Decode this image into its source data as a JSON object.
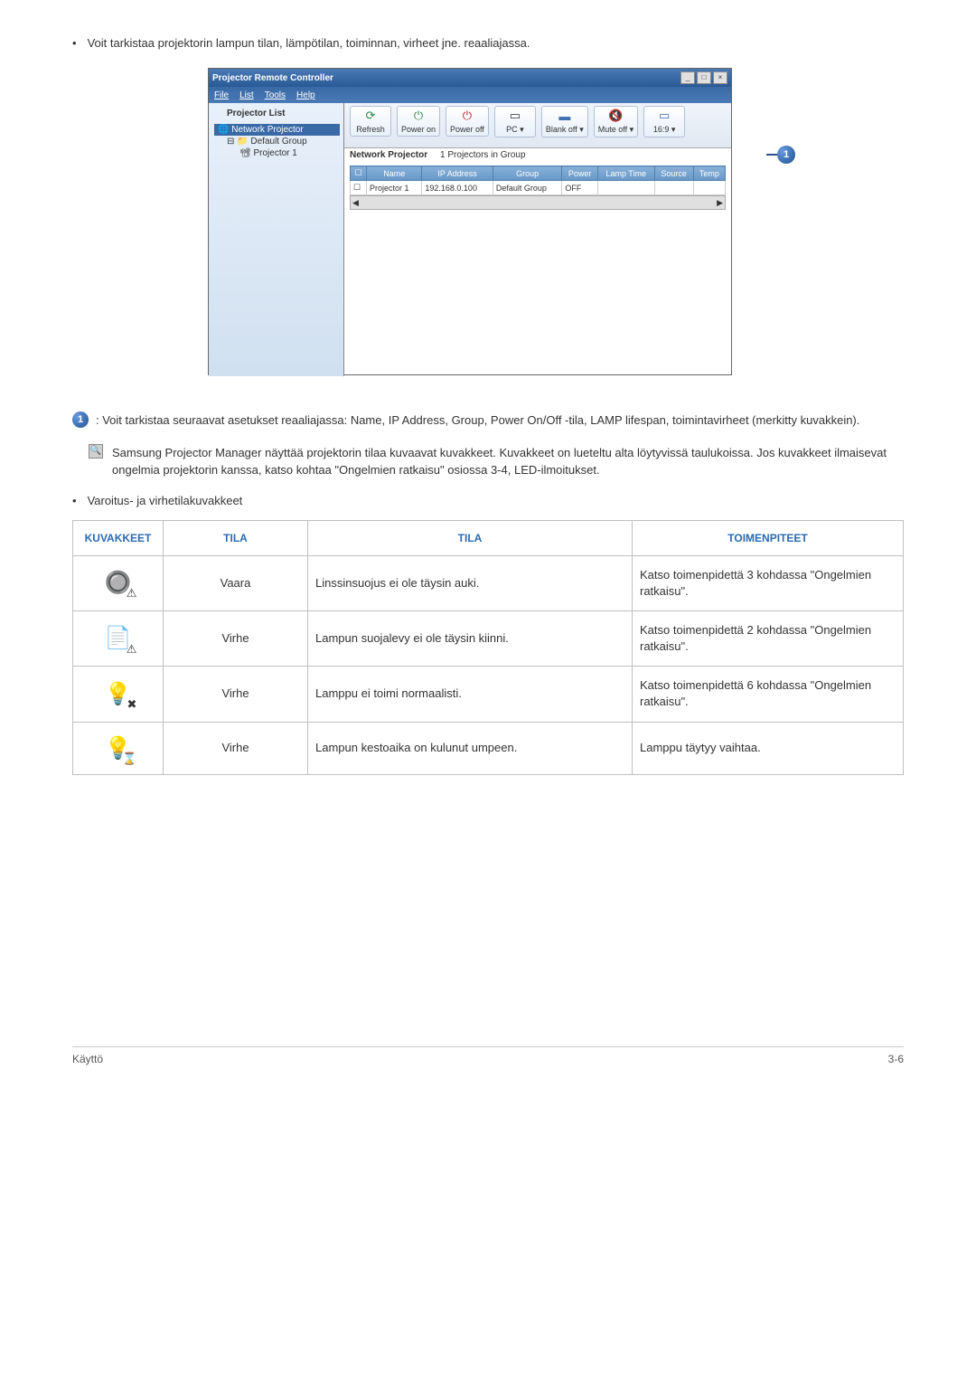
{
  "intro": "Voit tarkistaa projektorin lampun tilan, lämpötilan, toiminnan, virheet jne. reaaliajassa.",
  "app": {
    "title": "Projector Remote Controller",
    "menus": [
      "File",
      "List",
      "Tools",
      "Help"
    ],
    "left": {
      "title": "Projector List",
      "root": "Network Projector",
      "group": "Default Group",
      "child": "Projector 1"
    },
    "tools": [
      {
        "icon": "⟳",
        "color": "#2a8a40",
        "label": "Refresh"
      },
      {
        "icon": "⏻",
        "color": "#2a8a40",
        "label": "Power on"
      },
      {
        "icon": "⏻",
        "color": "#c02020",
        "label": "Power off"
      },
      {
        "icon": "▭",
        "color": "#333",
        "label": "PC ▾"
      },
      {
        "icon": "▬",
        "color": "#4070b0",
        "label": "Blank off ▾"
      },
      {
        "icon": "🔇",
        "color": "#666",
        "label": "Mute off ▾"
      },
      {
        "icon": "▭",
        "color": "#4070b0",
        "label": "16:9 ▾"
      }
    ],
    "sub_left": "Network Projector",
    "sub_right": "1 Projectors in Group",
    "cols": [
      "",
      "Name",
      "IP Address",
      "Group",
      "Power",
      "Lamp Time",
      "Source",
      "Temp"
    ],
    "row": [
      "☐",
      "Projector 1",
      "192.168.0.100",
      "Default Group",
      "OFF",
      "",
      "",
      ""
    ]
  },
  "callout1": ": Voit tarkistaa seuraavat asetukset reaaliajassa: Name, IP Address, Group, Power On/Off -tila, LAMP lifespan, toimintavirheet (merkitty kuvakkein).",
  "note": "Samsung Projector Manager näyttää projektorin tilaa kuvaavat kuvakkeet. Kuvakkeet on lueteltu alta löytyvissä taulukoissa. Jos kuvakkeet ilmaisevat ongelmia projektorin kanssa, katso kohtaa \"Ongelmien ratkaisu\" osiossa 3-4, LED-ilmoitukset.",
  "sub_bullet": "Varoitus- ja virhetilakuvakkeet",
  "table": {
    "headers": [
      "KUVAKKEET",
      "TILA",
      "TILA",
      "TOIMENPITEET"
    ],
    "rows": [
      {
        "tila": "Vaara",
        "desc": "Linssinsuojus ei ole täysin auki.",
        "action": "Katso toimenpidettä 3 kohdassa \"Ongelmien ratkaisu\"."
      },
      {
        "tila": "Virhe",
        "desc": "Lampun suojalevy ei ole täysin kiinni.",
        "action": "Katso toimenpidettä 2 kohdassa \"Ongelmien ratkaisu\"."
      },
      {
        "tila": "Virhe",
        "desc": "Lamppu ei toimi normaalisti.",
        "action": "Katso toimenpidettä 6 kohdassa \"Ongelmien ratkaisu\"."
      },
      {
        "tila": "Virhe",
        "desc": "Lampun kestoaika on kulunut umpeen.",
        "action": "Lamppu täytyy vaihtaa."
      }
    ],
    "col_widths": [
      "100px",
      "160px",
      "auto",
      "300px"
    ]
  },
  "icons": [
    {
      "base": "🔘",
      "overlay": "⚠"
    },
    {
      "base": "📄",
      "overlay": "⚠"
    },
    {
      "base": "💡",
      "overlay": "✖"
    },
    {
      "base": "💡",
      "overlay": "⌛"
    }
  ],
  "footer": {
    "left": "Käyttö",
    "right": "3-6"
  }
}
